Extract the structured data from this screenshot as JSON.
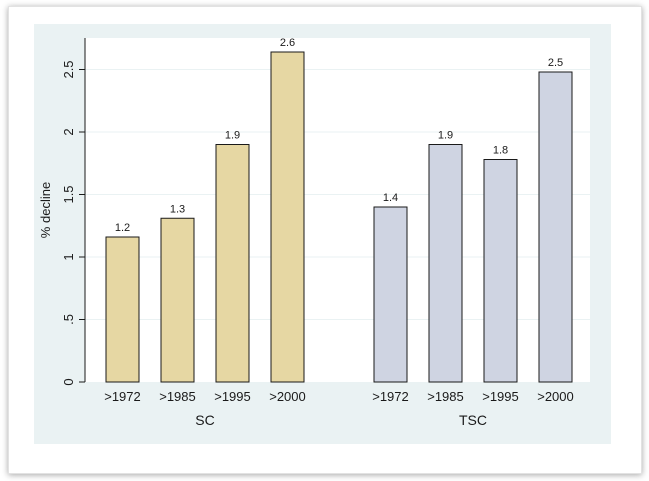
{
  "chart_data": {
    "type": "bar",
    "ylabel": "% decline",
    "ylim": [
      0,
      2.75
    ],
    "yticks": [
      0,
      0.5,
      1,
      1.5,
      2,
      2.5
    ],
    "ytick_labels": [
      "0",
      ".5",
      "1",
      "1.5",
      "2",
      "2.5"
    ],
    "grid": true,
    "groups": [
      {
        "name": "SC",
        "color": "#e6d7a3",
        "categories": [
          ">1972",
          ">1985",
          ">1995",
          ">2000"
        ],
        "values": [
          1.16,
          1.31,
          1.9,
          2.64
        ],
        "labels": [
          "1.2",
          "1.3",
          "1.9",
          "2.6"
        ]
      },
      {
        "name": "TSC",
        "color": "#cfd4e2",
        "categories": [
          ">1972",
          ">1985",
          ">1995",
          ">2000"
        ],
        "values": [
          1.4,
          1.9,
          1.78,
          2.48
        ],
        "labels": [
          "1.4",
          "1.9",
          "1.8",
          "2.5"
        ]
      }
    ]
  },
  "colors": {
    "plot_region_bg": "#eaf2f3",
    "plot_bg": "#ffffff",
    "grid": "#eaf2f3",
    "bar_outline": "#1a1a1a"
  }
}
